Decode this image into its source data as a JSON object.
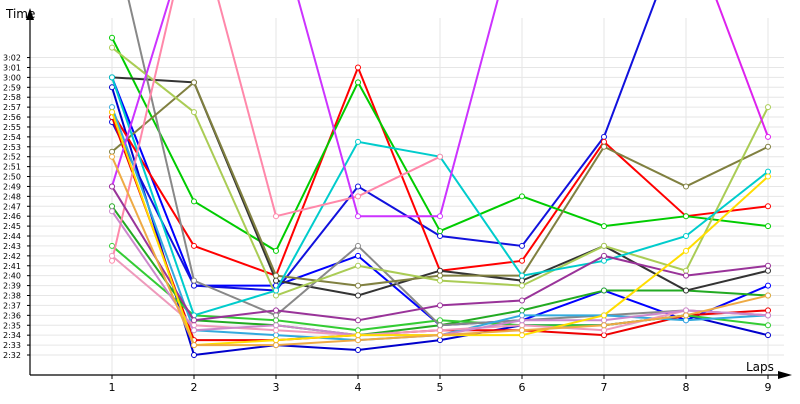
{
  "chart_data": {
    "type": "line",
    "xlabel": "Laps",
    "ylabel": "Time",
    "x": [
      1,
      2,
      3,
      4,
      5,
      6,
      7,
      8,
      9
    ],
    "ylim": [
      150,
      184
    ],
    "xlim": [
      0,
      9.1
    ],
    "y_tick_values": [
      152,
      153,
      154,
      155,
      156,
      157,
      158,
      159,
      160,
      161,
      162,
      163,
      164,
      165,
      166,
      167,
      168,
      169,
      170,
      171,
      172,
      173,
      174,
      175,
      176,
      177,
      178,
      179,
      180,
      181,
      182
    ],
    "y_tick_labels": [
      "2:32",
      "2:33",
      "2:34",
      "2:35",
      "2:36",
      "2:37",
      "2:38",
      "2:39",
      "2:40",
      "2:41",
      "2:42",
      "2:43",
      "2:44",
      "2:45",
      "2:46",
      "2:47",
      "2:48",
      "2:49",
      "2:50",
      "2:51",
      "2:52",
      "2:53",
      "2:54",
      "2:55",
      "2:56",
      "2:57",
      "2:58",
      "2:59",
      "3:00",
      "3:01",
      "3:02"
    ],
    "x_tick_labels": [
      "1",
      "2",
      "3",
      "4",
      "5",
      "6",
      "7",
      "8",
      "9"
    ],
    "grid": "horizontal",
    "series": [
      {
        "color": "#0000ff",
        "values": [
          180.0,
          159.0,
          159.0,
          162.0,
          155.0,
          155.5,
          158.5,
          155.5,
          159.0
        ]
      },
      {
        "color": "#0000cc",
        "values": [
          179.0,
          152.0,
          153.0,
          152.5,
          153.5,
          155.0,
          155.0,
          156.0,
          154.0
        ]
      },
      {
        "color": "#1111dd",
        "values": [
          175.5,
          159.0,
          158.5,
          169.0,
          164.0,
          163.0,
          174.0,
          196.0,
          null
        ]
      },
      {
        "color": "#ff0000",
        "values": [
          176.5,
          163.0,
          160.0,
          181.0,
          160.5,
          161.5,
          173.5,
          166.0,
          167.0
        ]
      },
      {
        "color": "#ee0000",
        "values": [
          176.0,
          153.5,
          153.5,
          154.0,
          154.5,
          154.5,
          154.0,
          156.0,
          156.5
        ]
      },
      {
        "color": "#00cc00",
        "values": [
          184.0,
          167.5,
          162.5,
          179.5,
          164.5,
          168.0,
          165.0,
          166.0,
          165.0
        ]
      },
      {
        "color": "#22aa22",
        "values": [
          167.0,
          155.5,
          155.0,
          154.0,
          155.0,
          156.5,
          158.5,
          158.5,
          158.0
        ]
      },
      {
        "color": "#33cc33",
        "values": [
          163.0,
          156.0,
          155.5,
          154.5,
          155.5,
          155.0,
          155.0,
          156.0,
          155.0
        ]
      },
      {
        "color": "#333333",
        "values": [
          180.0,
          179.5,
          159.5,
          158.0,
          160.5,
          159.5,
          163.0,
          158.5,
          160.5
        ]
      },
      {
        "color": "#888888",
        "values": [
          195.0,
          159.5,
          156.0,
          163.0,
          155.0,
          155.5,
          156.0,
          156.5,
          156.0
        ]
      },
      {
        "color": "#808040",
        "values": [
          172.5,
          179.5,
          160.0,
          159.0,
          160.0,
          160.0,
          173.0,
          169.0,
          173.0
        ]
      },
      {
        "color": "#aacc55",
        "values": [
          183.0,
          176.5,
          158.0,
          161.0,
          159.5,
          159.0,
          163.0,
          160.5,
          177.0
        ]
      },
      {
        "color": "#00cccc",
        "values": [
          180.0,
          156.0,
          158.5,
          173.5,
          172.0,
          160.0,
          161.5,
          164.0,
          170.5
        ]
      },
      {
        "color": "#33aadd",
        "values": [
          177.0,
          154.5,
          154.0,
          153.5,
          154.0,
          156.0,
          156.0,
          155.5,
          156.0
        ]
      },
      {
        "color": "#ff88aa",
        "values": [
          161.5,
          197.0,
          166.0,
          168.0,
          172.0,
          null,
          null,
          null,
          null
        ]
      },
      {
        "color": "#ee99bb",
        "values": [
          162.0,
          155.0,
          154.5,
          154.0,
          154.5,
          155.0,
          154.5,
          156.5,
          156.0
        ]
      },
      {
        "color": "#cc33ff",
        "values": [
          169.0,
          196.0,
          196.0,
          166.0,
          166.0,
          197.0,
          null,
          null,
          null
        ]
      },
      {
        "color": "#dd22ee",
        "values": [
          null,
          null,
          null,
          null,
          null,
          null,
          null,
          196.0,
          174.0
        ]
      },
      {
        "color": "#993399",
        "values": [
          169.0,
          155.5,
          156.5,
          155.5,
          157.0,
          157.5,
          162.0,
          160.0,
          161.0
        ]
      },
      {
        "color": "#cc88cc",
        "values": [
          166.5,
          154.5,
          155.0,
          154.0,
          154.0,
          155.5,
          155.5,
          156.5,
          156.0
        ]
      },
      {
        "color": "#ffdd00",
        "values": [
          176.5,
          153.0,
          153.5,
          154.0,
          154.0,
          154.0,
          156.0,
          162.5,
          170.0
        ]
      },
      {
        "color": "#eeaa44",
        "values": [
          172.0,
          153.0,
          153.0,
          153.5,
          154.0,
          154.5,
          155.0,
          156.0,
          158.0
        ]
      }
    ]
  }
}
